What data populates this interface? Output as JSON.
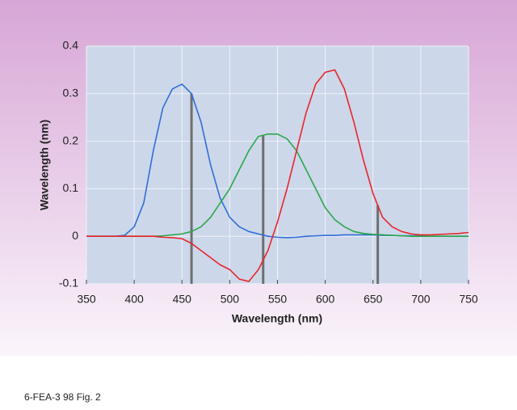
{
  "chart_data": {
    "type": "line",
    "xlabel": "Wavelength (nm)",
    "ylabel": "Wavelength (nm)",
    "caption": "6-FEA-3 98 Fig. 2",
    "x": [
      350,
      360,
      370,
      380,
      390,
      400,
      410,
      420,
      430,
      440,
      450,
      460,
      470,
      480,
      490,
      500,
      510,
      520,
      530,
      540,
      550,
      560,
      570,
      580,
      590,
      600,
      610,
      620,
      630,
      640,
      650,
      660,
      670,
      680,
      690,
      700,
      710,
      720,
      730,
      740,
      750
    ],
    "series": [
      {
        "color": "#2f6fd6",
        "values": [
          0,
          0,
          0,
          0,
          0.002,
          0.02,
          0.07,
          0.18,
          0.27,
          0.31,
          0.32,
          0.3,
          0.24,
          0.15,
          0.08,
          0.04,
          0.02,
          0.01,
          0.005,
          0,
          -0.002,
          -0.003,
          -0.002,
          0,
          0.001,
          0.002,
          0.002,
          0.003,
          0.003,
          0.003,
          0.003,
          0.002,
          0.002,
          0.001,
          0.001,
          0.001,
          0,
          0,
          0,
          0,
          0
        ]
      },
      {
        "color": "#2aa84a",
        "values": [
          0,
          0,
          0,
          0,
          0,
          0,
          0,
          0,
          0.001,
          0.003,
          0.005,
          0.01,
          0.02,
          0.04,
          0.07,
          0.1,
          0.14,
          0.18,
          0.21,
          0.215,
          0.215,
          0.205,
          0.18,
          0.14,
          0.1,
          0.06,
          0.035,
          0.02,
          0.01,
          0.006,
          0.004,
          0.003,
          0.002,
          0.001,
          0,
          0,
          0,
          0,
          0,
          0,
          0
        ]
      },
      {
        "color": "#e8262a",
        "values": [
          0,
          0,
          0,
          0,
          0,
          0,
          0,
          0,
          -0.002,
          -0.003,
          -0.005,
          -0.015,
          -0.03,
          -0.045,
          -0.06,
          -0.07,
          -0.09,
          -0.095,
          -0.07,
          -0.03,
          0.03,
          0.1,
          0.18,
          0.26,
          0.32,
          0.345,
          0.35,
          0.31,
          0.24,
          0.16,
          0.09,
          0.04,
          0.02,
          0.01,
          0.005,
          0.003,
          0.003,
          0.004,
          0.005,
          0.006,
          0.008
        ]
      }
    ],
    "reference_lines": [
      460,
      535,
      655
    ],
    "reference_color": "#6e6e6e",
    "xlim": [
      350,
      750
    ],
    "xticks": [
      350,
      400,
      450,
      500,
      550,
      600,
      650,
      700,
      750
    ],
    "ylim": [
      -0.1,
      0.4
    ],
    "yticks": [
      -0.1,
      0,
      0.1,
      0.2,
      0.3,
      0.4
    ],
    "grid": true
  }
}
